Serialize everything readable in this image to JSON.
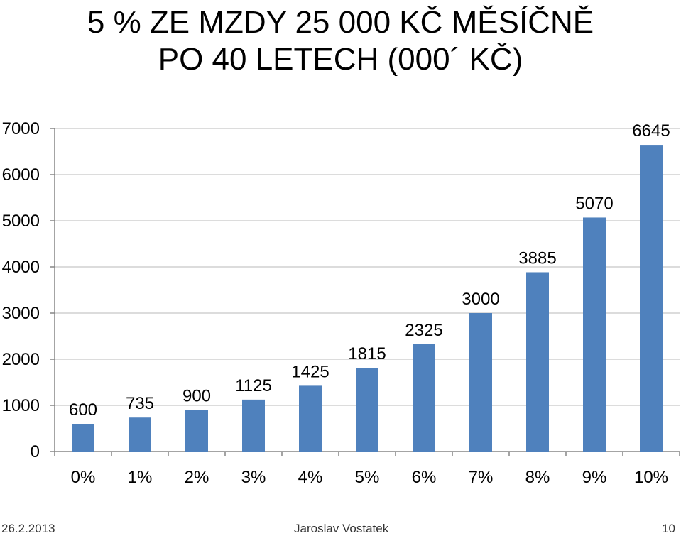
{
  "title_line1": "5 % ZE MZDY 25 000 KČ MĚSÍČNĚ",
  "title_line2": "PO 40 LETECH (000´ KČ)",
  "footer": {
    "date": "26.2.2013",
    "author": "Jaroslav Vostatek",
    "page": "10"
  },
  "colors": {
    "bar": "#4f81bd",
    "grid": "#d0d0d0",
    "axis": "#868686"
  },
  "chart_data": {
    "type": "bar",
    "categories": [
      "0%",
      "1%",
      "2%",
      "3%",
      "4%",
      "5%",
      "6%",
      "7%",
      "8%",
      "9%",
      "10%"
    ],
    "values": [
      600,
      735,
      900,
      1125,
      1425,
      1815,
      2325,
      3000,
      3885,
      5070,
      6645
    ],
    "data_labels": [
      "600",
      "735",
      "900",
      "1125",
      "1425",
      "1815",
      "2325",
      "3000",
      "3885",
      "5070",
      "6645"
    ],
    "yticks": [
      "0",
      "1000",
      "2000",
      "3000",
      "4000",
      "5000",
      "6000",
      "7000"
    ],
    "ylim": [
      0,
      7000
    ],
    "grid": true,
    "legend": "none"
  }
}
